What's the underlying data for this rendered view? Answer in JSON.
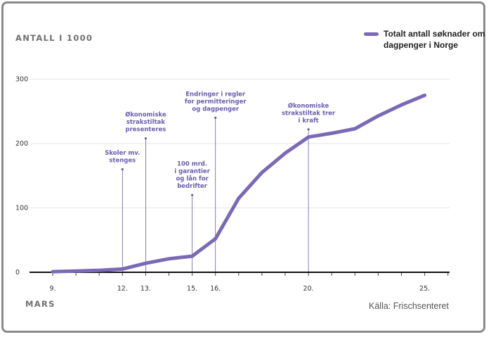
{
  "chart_data": {
    "type": "line",
    "title": "",
    "ylabel": "ANTALL I 1000",
    "xlabel": "MARS",
    "source": "Källa: Frischsenteret",
    "legend": [
      "Totalt antall søknader om dagpenger i Norge"
    ],
    "x_ticks": [
      "9.",
      "12.",
      "13.",
      "15.",
      "16.",
      "20.",
      "25."
    ],
    "y_ticks": [
      "0",
      "100",
      "200",
      "300"
    ],
    "ylim": [
      0,
      300
    ],
    "xlim": [
      9,
      25
    ],
    "series": [
      {
        "name": "Totalt antall søknader om dagpenger i Norge",
        "color": "#7b68b7",
        "x": [
          9,
          10,
          11,
          12,
          13,
          14,
          15,
          16,
          17,
          18,
          19,
          20,
          21,
          22,
          23,
          24,
          25
        ],
        "values": [
          1,
          2,
          3,
          5,
          14,
          21,
          25,
          52,
          115,
          155,
          185,
          210,
          216,
          223,
          243,
          260,
          275
        ]
      }
    ],
    "annotations": [
      {
        "x": 12,
        "y": 160,
        "lines": [
          "Skoler mv.",
          "stenges"
        ]
      },
      {
        "x": 13,
        "y": 208,
        "lines": [
          "Økonomiske",
          "strakstiltak",
          "presenteres"
        ]
      },
      {
        "x": 15,
        "y": 120,
        "lines": [
          "100 mrd.",
          "i garantier",
          "og lån for",
          "bedrifter"
        ]
      },
      {
        "x": 16,
        "y": 240,
        "lines": [
          "Endringer i regler",
          "for permitteringer",
          "og dagpenger"
        ]
      },
      {
        "x": 20,
        "y": 222,
        "lines": [
          "Økonomiske",
          "strakstiltak trer",
          "i kraft"
        ]
      }
    ]
  }
}
